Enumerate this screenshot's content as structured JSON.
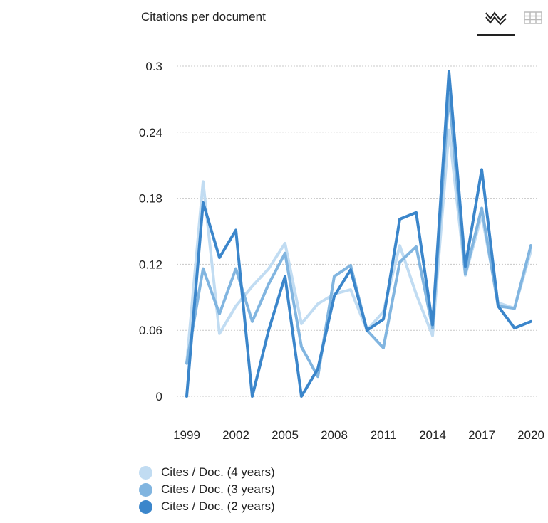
{
  "header": {
    "title": "Citations per document",
    "chart_view_icon": "line-chart-icon",
    "table_view_icon": "table-grid-icon"
  },
  "chart_data": {
    "type": "line",
    "title": "Citations per document",
    "xlabel": "",
    "ylabel": "",
    "x": [
      1999,
      2000,
      2001,
      2002,
      2003,
      2004,
      2005,
      2006,
      2007,
      2008,
      2009,
      2010,
      2011,
      2012,
      2013,
      2014,
      2015,
      2016,
      2017,
      2018,
      2019,
      2020
    ],
    "x_ticks": [
      1999,
      2002,
      2005,
      2008,
      2011,
      2014,
      2017,
      2020
    ],
    "y_ticks": [
      0,
      0.06,
      0.12,
      0.18,
      0.24,
      0.3
    ],
    "y_tick_labels": [
      "0",
      "0.06",
      "0.12",
      "0.18",
      "0.24",
      "0.3"
    ],
    "ylim": [
      0,
      0.3
    ],
    "grid": true,
    "legend_position": "bottom-left",
    "series": [
      {
        "name": "Cites / Doc. (4 years)",
        "color": "#c1dcf2",
        "values": [
          0.03,
          0.195,
          0.057,
          0.082,
          0.1,
          0.116,
          0.139,
          0.066,
          0.084,
          0.093,
          0.097,
          0.06,
          0.077,
          0.137,
          0.093,
          0.055,
          0.242,
          0.11,
          0.165,
          0.085,
          0.08,
          0.132
        ]
      },
      {
        "name": "Cites / Doc. (3 years)",
        "color": "#81b5e0",
        "values": [
          0.03,
          0.116,
          0.075,
          0.116,
          0.068,
          0.102,
          0.13,
          0.045,
          0.018,
          0.109,
          0.119,
          0.06,
          0.044,
          0.122,
          0.136,
          0.062,
          0.275,
          0.111,
          0.171,
          0.082,
          0.08,
          0.137
        ]
      },
      {
        "name": "Cites / Doc. (2 years)",
        "color": "#3b86cb",
        "values": [
          0.0,
          0.176,
          0.126,
          0.151,
          0.0,
          0.06,
          0.109,
          0.0,
          0.025,
          0.091,
          0.115,
          0.06,
          0.07,
          0.161,
          0.167,
          0.065,
          0.295,
          0.118,
          0.206,
          0.082,
          0.062,
          0.068
        ]
      }
    ]
  }
}
